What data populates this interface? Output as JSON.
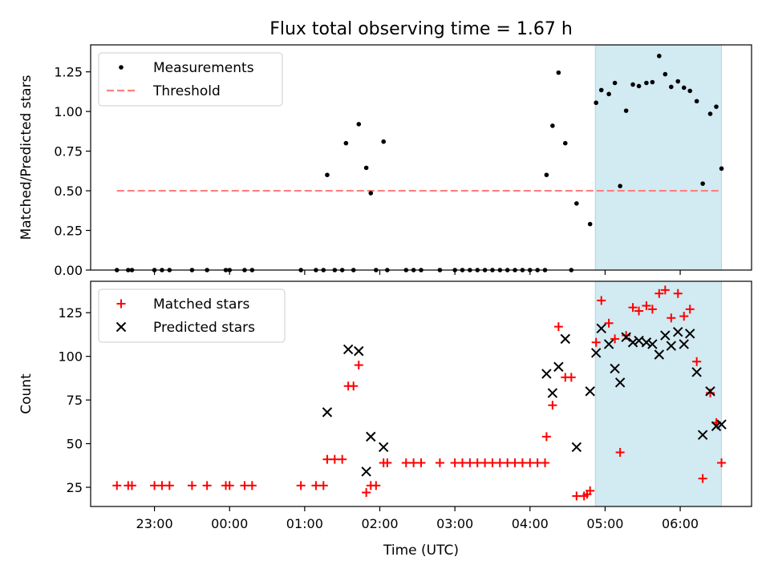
{
  "figure": {
    "title": "Flux total observing time = 1.67 h",
    "xlabel": "Time (UTC)",
    "colors": {
      "measurement": "#000000",
      "threshold": "#ff7f7f",
      "matched": "#ff0000",
      "predicted": "#000000",
      "highlight": "#add8e6"
    }
  },
  "chart_data": [
    {
      "type": "scatter",
      "panel": "top",
      "ylabel": "Matched/Predicted stars",
      "xlim": [
        22.15,
        6.95
      ],
      "ylim": [
        0,
        1.42
      ],
      "yticks": [
        0.0,
        0.25,
        0.5,
        0.75,
        1.0,
        1.25
      ],
      "ytick_labels": [
        "0.00",
        "0.25",
        "0.50",
        "0.75",
        "1.00",
        "1.25"
      ],
      "highlight_span": [
        4.87,
        6.55
      ],
      "legend": {
        "position": "upper-left",
        "entries": [
          {
            "label": "Measurements",
            "marker": "dot"
          },
          {
            "label": "Threshold",
            "marker": "dashed-line"
          }
        ]
      },
      "threshold": {
        "y": 0.5,
        "x_range": [
          22.5,
          6.55
        ]
      },
      "series": [
        {
          "name": "Measurements",
          "points": [
            [
              22.5,
              0
            ],
            [
              22.65,
              0
            ],
            [
              22.7,
              0
            ],
            [
              23.0,
              0
            ],
            [
              23.1,
              0
            ],
            [
              23.2,
              0
            ],
            [
              23.5,
              0
            ],
            [
              23.7,
              0
            ],
            [
              23.95,
              0
            ],
            [
              24.0,
              0
            ],
            [
              24.2,
              0
            ],
            [
              24.3,
              0
            ],
            [
              24.95,
              0
            ],
            [
              25.15,
              0
            ],
            [
              25.25,
              0
            ],
            [
              25.3,
              0.6
            ],
            [
              25.4,
              0
            ],
            [
              25.5,
              0
            ],
            [
              25.55,
              0.8
            ],
            [
              25.65,
              0
            ],
            [
              25.72,
              0.92
            ],
            [
              25.82,
              0.645
            ],
            [
              25.88,
              0.485
            ],
            [
              25.95,
              0
            ],
            [
              26.05,
              0.81
            ],
            [
              26.1,
              0
            ],
            [
              26.35,
              0
            ],
            [
              26.45,
              0
            ],
            [
              26.55,
              0
            ],
            [
              26.8,
              0
            ],
            [
              27.0,
              0
            ],
            [
              27.1,
              0
            ],
            [
              27.2,
              0
            ],
            [
              27.3,
              0
            ],
            [
              27.4,
              0
            ],
            [
              27.5,
              0
            ],
            [
              27.6,
              0
            ],
            [
              27.7,
              0
            ],
            [
              27.8,
              0
            ],
            [
              27.9,
              0
            ],
            [
              28.0,
              0
            ],
            [
              28.1,
              0
            ],
            [
              28.2,
              0
            ],
            [
              28.22,
              0.6
            ],
            [
              28.3,
              0.91
            ],
            [
              28.38,
              1.245
            ],
            [
              28.47,
              0.8
            ],
            [
              28.55,
              0
            ],
            [
              28.62,
              0.42
            ],
            [
              28.8,
              0.29
            ],
            [
              28.88,
              1.055
            ],
            [
              28.95,
              1.135
            ],
            [
              29.05,
              1.11
            ],
            [
              29.13,
              1.18
            ],
            [
              29.2,
              0.53
            ],
            [
              29.28,
              1.005
            ],
            [
              29.37,
              1.17
            ],
            [
              29.45,
              1.16
            ],
            [
              29.55,
              1.18
            ],
            [
              29.63,
              1.185
            ],
            [
              29.72,
              1.35
            ],
            [
              29.8,
              1.235
            ],
            [
              29.88,
              1.155
            ],
            [
              29.97,
              1.19
            ],
            [
              30.05,
              1.15
            ],
            [
              30.13,
              1.13
            ],
            [
              30.22,
              1.065
            ],
            [
              30.3,
              0.545
            ],
            [
              30.4,
              0.985
            ],
            [
              30.48,
              1.03
            ],
            [
              30.55,
              0.64
            ]
          ]
        }
      ]
    },
    {
      "type": "scatter",
      "panel": "bottom",
      "ylabel": "Count",
      "xlabel": "Time (UTC)",
      "xlim": [
        22.15,
        6.95
      ],
      "ylim": [
        14,
        143
      ],
      "yticks": [
        25,
        50,
        75,
        100,
        125
      ],
      "ytick_labels": [
        "25",
        "50",
        "75",
        "100",
        "125"
      ],
      "xticks": [
        23,
        24,
        25,
        26,
        27,
        28,
        29,
        30
      ],
      "xtick_labels": [
        "23:00",
        "00:00",
        "01:00",
        "02:00",
        "03:00",
        "04:00",
        "05:00",
        "06:00"
      ],
      "highlight_span": [
        4.87,
        6.55
      ],
      "legend": {
        "position": "upper-left",
        "entries": [
          {
            "label": "Matched stars",
            "marker": "plus"
          },
          {
            "label": "Predicted stars",
            "marker": "x"
          }
        ]
      },
      "series": [
        {
          "name": "Matched stars",
          "marker": "plus",
          "points": [
            [
              22.5,
              26
            ],
            [
              22.65,
              26
            ],
            [
              22.7,
              26
            ],
            [
              23.0,
              26
            ],
            [
              23.1,
              26
            ],
            [
              23.2,
              26
            ],
            [
              23.5,
              26
            ],
            [
              23.7,
              26
            ],
            [
              23.95,
              26
            ],
            [
              24.0,
              26
            ],
            [
              24.2,
              26
            ],
            [
              24.3,
              26
            ],
            [
              24.95,
              26
            ],
            [
              25.15,
              26
            ],
            [
              25.25,
              26
            ],
            [
              25.3,
              41
            ],
            [
              25.4,
              41
            ],
            [
              25.5,
              41
            ],
            [
              25.58,
              83
            ],
            [
              25.65,
              83
            ],
            [
              25.72,
              95
            ],
            [
              25.82,
              22
            ],
            [
              25.88,
              26
            ],
            [
              25.95,
              26
            ],
            [
              26.05,
              39
            ],
            [
              26.1,
              39
            ],
            [
              26.35,
              39
            ],
            [
              26.45,
              39
            ],
            [
              26.55,
              39
            ],
            [
              26.8,
              39
            ],
            [
              27.0,
              39
            ],
            [
              27.1,
              39
            ],
            [
              27.2,
              39
            ],
            [
              27.3,
              39
            ],
            [
              27.4,
              39
            ],
            [
              27.5,
              39
            ],
            [
              27.6,
              39
            ],
            [
              27.7,
              39
            ],
            [
              27.8,
              39
            ],
            [
              27.9,
              39
            ],
            [
              28.0,
              39
            ],
            [
              28.1,
              39
            ],
            [
              28.2,
              39
            ],
            [
              28.22,
              54
            ],
            [
              28.3,
              72
            ],
            [
              28.38,
              117
            ],
            [
              28.47,
              88
            ],
            [
              28.55,
              88
            ],
            [
              28.62,
              20
            ],
            [
              28.72,
              20
            ],
            [
              28.76,
              21
            ],
            [
              28.8,
              23
            ],
            [
              28.88,
              108
            ],
            [
              28.95,
              132
            ],
            [
              29.05,
              119
            ],
            [
              29.13,
              110
            ],
            [
              29.2,
              45
            ],
            [
              29.28,
              112
            ],
            [
              29.37,
              128
            ],
            [
              29.45,
              126
            ],
            [
              29.55,
              129
            ],
            [
              29.63,
              127
            ],
            [
              29.72,
              136
            ],
            [
              29.8,
              138
            ],
            [
              29.88,
              122
            ],
            [
              29.97,
              136
            ],
            [
              30.05,
              123
            ],
            [
              30.13,
              127
            ],
            [
              30.22,
              97
            ],
            [
              30.3,
              30
            ],
            [
              30.4,
              79
            ],
            [
              30.48,
              62
            ],
            [
              30.55,
              39
            ]
          ]
        },
        {
          "name": "Predicted stars",
          "marker": "x",
          "points": [
            [
              25.3,
              68
            ],
            [
              25.58,
              104
            ],
            [
              25.72,
              103
            ],
            [
              25.82,
              34
            ],
            [
              25.88,
              54
            ],
            [
              26.05,
              48
            ],
            [
              28.22,
              90
            ],
            [
              28.3,
              79
            ],
            [
              28.38,
              94
            ],
            [
              28.47,
              110
            ],
            [
              28.62,
              48
            ],
            [
              28.8,
              80
            ],
            [
              28.88,
              102
            ],
            [
              28.95,
              116
            ],
            [
              29.05,
              107
            ],
            [
              29.13,
              93
            ],
            [
              29.2,
              85
            ],
            [
              29.28,
              111
            ],
            [
              29.37,
              108
            ],
            [
              29.45,
              109
            ],
            [
              29.55,
              108
            ],
            [
              29.63,
              107
            ],
            [
              29.72,
              101
            ],
            [
              29.8,
              112
            ],
            [
              29.88,
              106
            ],
            [
              29.97,
              114
            ],
            [
              30.05,
              107
            ],
            [
              30.13,
              113
            ],
            [
              30.22,
              91
            ],
            [
              30.3,
              55
            ],
            [
              30.4,
              80
            ],
            [
              30.48,
              60
            ],
            [
              30.55,
              61
            ]
          ]
        }
      ]
    }
  ]
}
